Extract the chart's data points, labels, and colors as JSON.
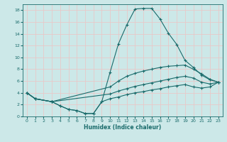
{
  "background_color": "#cce8e8",
  "grid_color": "#e8c8c8",
  "line_color": "#1a6b6b",
  "xlabel": "Humidex (Indice chaleur)",
  "xlim": [
    -0.5,
    23.5
  ],
  "ylim": [
    0,
    19
  ],
  "xticks": [
    0,
    1,
    2,
    3,
    4,
    5,
    6,
    7,
    8,
    9,
    10,
    11,
    12,
    13,
    14,
    15,
    16,
    17,
    18,
    19,
    20,
    21,
    22,
    23
  ],
  "yticks": [
    0,
    2,
    4,
    6,
    8,
    10,
    12,
    14,
    16,
    18
  ],
  "lines": [
    {
      "x": [
        0,
        1,
        3,
        4,
        5,
        6,
        7,
        8,
        9,
        10,
        11,
        12,
        13,
        14,
        15,
        16,
        17,
        18,
        19,
        20,
        21,
        22,
        23
      ],
      "y": [
        4,
        3,
        2.5,
        1.8,
        1.2,
        1.0,
        0.5,
        0.5,
        2.5,
        7.5,
        12.3,
        15.5,
        18.2,
        18.3,
        18.3,
        16.5,
        14.1,
        12.2,
        9.5,
        8.3,
        7.0,
        6.2,
        5.8
      ]
    },
    {
      "x": [
        0,
        1,
        3,
        10,
        11,
        12,
        13,
        14,
        15,
        16,
        17,
        18,
        19,
        20,
        21,
        22,
        23
      ],
      "y": [
        4,
        3,
        2.5,
        5.0,
        6.0,
        6.8,
        7.3,
        7.7,
        8.0,
        8.3,
        8.5,
        8.6,
        8.7,
        8.0,
        7.2,
        6.3,
        5.8
      ]
    },
    {
      "x": [
        0,
        1,
        3,
        10,
        11,
        12,
        13,
        14,
        15,
        16,
        17,
        18,
        19,
        20,
        21,
        22,
        23
      ],
      "y": [
        4,
        3,
        2.5,
        3.8,
        4.3,
        4.7,
        5.1,
        5.4,
        5.7,
        6.0,
        6.3,
        6.6,
        6.8,
        6.5,
        5.8,
        5.5,
        5.8
      ]
    },
    {
      "x": [
        0,
        1,
        3,
        4,
        5,
        6,
        7,
        8,
        9,
        10,
        11,
        12,
        13,
        14,
        15,
        16,
        17,
        18,
        19,
        20,
        21,
        22,
        23
      ],
      "y": [
        4,
        3,
        2.5,
        1.8,
        1.2,
        1.0,
        0.5,
        0.5,
        2.5,
        3.0,
        3.3,
        3.7,
        4.0,
        4.2,
        4.5,
        4.7,
        5.0,
        5.2,
        5.4,
        5.0,
        4.8,
        5.0,
        5.8
      ]
    }
  ]
}
